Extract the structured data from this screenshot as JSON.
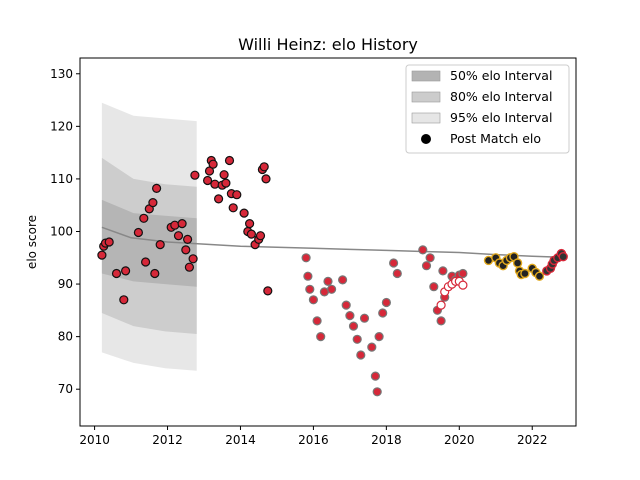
{
  "chart_data": {
    "type": "scatter",
    "title": "Willi Heinz: elo History",
    "ylabel": "elo score",
    "xlabel": "",
    "xlim": [
      2009.6,
      2023.2
    ],
    "ylim": [
      63,
      133
    ],
    "xticks": [
      2010,
      2012,
      2014,
      2016,
      2018,
      2020,
      2022
    ],
    "yticks": [
      70,
      80,
      90,
      100,
      110,
      120,
      130
    ],
    "grid": false,
    "legend_position": "top-right",
    "legend": [
      {
        "label": "50% elo Interval",
        "kind": "band",
        "color": "#b3b3b3"
      },
      {
        "label": "80% elo Interval",
        "kind": "band",
        "color": "#cccccc"
      },
      {
        "label": "95% elo Interval",
        "kind": "band",
        "color": "#e6e6e6"
      },
      {
        "label": "Post Match elo",
        "kind": "marker",
        "color": "#000000"
      }
    ],
    "colors": {
      "band50": "#b0b0b0",
      "band80": "#c8c8c8",
      "band95": "#e3e3e3",
      "line": "#888888",
      "fill": "#d62839"
    },
    "mean_line": {
      "x": [
        2010.2,
        2011.0,
        2012.0,
        2013.0,
        2014.0,
        2015.0,
        2016.0,
        2017.0,
        2018.0,
        2019.0,
        2020.0,
        2021.0,
        2022.0,
        2022.8
      ],
      "y": [
        100.8,
        98.8,
        98.0,
        97.6,
        97.2,
        97.0,
        96.8,
        96.6,
        96.4,
        96.2,
        96.0,
        95.6,
        95.3,
        95.1
      ]
    },
    "bands": [
      {
        "level": "95",
        "x0": 2010.2,
        "x1": 2012.8,
        "upper": [
          124.5,
          122.0,
          121.5,
          121.0
        ],
        "lower": [
          77.0,
          75.0,
          74.0,
          73.5
        ]
      },
      {
        "level": "80",
        "x0": 2010.2,
        "x1": 2012.8,
        "upper": [
          114.0,
          110.0,
          109.0,
          108.5
        ],
        "lower": [
          84.5,
          82.0,
          81.0,
          80.5
        ]
      },
      {
        "level": "50",
        "x0": 2010.2,
        "x1": 2012.8,
        "upper": [
          106.0,
          103.5,
          103.0,
          102.5
        ],
        "lower": [
          92.0,
          90.5,
          90.0,
          89.5
        ]
      }
    ],
    "series": [
      {
        "group": "black-edge",
        "x": [
          2010.2,
          2010.25,
          2010.3,
          2010.4,
          2010.6,
          2010.8,
          2010.85,
          2011.2,
          2011.35,
          2011.4,
          2011.5,
          2011.6,
          2011.65,
          2011.7,
          2011.8,
          2012.1,
          2012.2,
          2012.3,
          2012.4,
          2012.5,
          2012.55,
          2012.6,
          2012.7,
          2012.75,
          2013.1,
          2013.15,
          2013.2,
          2013.25,
          2013.3,
          2013.4,
          2013.5,
          2013.55,
          2013.6,
          2013.7,
          2013.75,
          2013.8,
          2013.9,
          2014.1,
          2014.2,
          2014.25,
          2014.3,
          2014.4,
          2014.5,
          2014.55,
          2014.6,
          2014.65,
          2014.7,
          2014.75
        ],
        "y": [
          95.5,
          97.2,
          97.8,
          98.0,
          92.0,
          87.0,
          92.5,
          99.8,
          102.5,
          94.2,
          104.3,
          105.5,
          92.0,
          108.2,
          97.5,
          100.8,
          101.2,
          99.2,
          101.5,
          96.5,
          98.5,
          93.2,
          94.8,
          110.7,
          109.7,
          111.5,
          113.5,
          112.8,
          109.0,
          106.2,
          108.8,
          110.8,
          109.2,
          113.5,
          107.2,
          104.5,
          107.0,
          103.5,
          100.0,
          101.5,
          99.5,
          97.5,
          98.5,
          99.2,
          111.8,
          112.3,
          110.0,
          88.7
        ]
      },
      {
        "group": "grey-edge",
        "x": [
          2015.8,
          2015.85,
          2015.9,
          2016.0,
          2016.1,
          2016.2,
          2016.3,
          2016.4,
          2016.5,
          2016.8,
          2016.9,
          2017.0,
          2017.1,
          2017.2,
          2017.3,
          2017.4,
          2017.6,
          2017.7,
          2017.75,
          2017.8,
          2017.9,
          2018.0,
          2018.2,
          2018.3,
          2019.0,
          2019.1,
          2019.2,
          2019.3,
          2019.4,
          2019.5,
          2019.55,
          2019.6,
          2019.8,
          2019.9,
          2020.0,
          2020.1
        ],
        "y": [
          95.0,
          91.5,
          89.0,
          87.0,
          83.0,
          80.0,
          88.5,
          90.5,
          89.0,
          90.8,
          86.0,
          84.0,
          82.0,
          79.5,
          76.5,
          83.5,
          78.0,
          72.5,
          69.5,
          80.0,
          84.5,
          86.5,
          94.0,
          92.0,
          96.5,
          93.5,
          95.0,
          89.5,
          85.0,
          83.0,
          92.5,
          87.5,
          91.5,
          90.8,
          91.7,
          92.0
        ]
      },
      {
        "group": "hollow",
        "x": [
          2019.5,
          2019.6,
          2019.7,
          2019.8,
          2019.9,
          2020.0,
          2020.1
        ],
        "y": [
          86.0,
          88.5,
          89.5,
          90.0,
          90.5,
          90.5,
          89.8
        ]
      },
      {
        "group": "dark-gold",
        "x": [
          2020.8,
          2021.0,
          2021.1,
          2021.2,
          2021.3,
          2021.4,
          2021.5,
          2021.6,
          2021.65,
          2021.7,
          2021.8,
          2022.0,
          2022.1,
          2022.2
        ],
        "y": [
          94.5,
          95.0,
          94.0,
          93.5,
          94.5,
          95.0,
          95.2,
          94.0,
          92.5,
          91.8,
          92.0,
          93.0,
          92.2,
          91.5
        ]
      },
      {
        "group": "red-dark",
        "x": [
          2022.4,
          2022.5,
          2022.55,
          2022.6,
          2022.7,
          2022.8,
          2022.85
        ],
        "y": [
          92.5,
          93.0,
          93.8,
          94.5,
          95.0,
          95.8,
          95.2
        ]
      }
    ]
  }
}
